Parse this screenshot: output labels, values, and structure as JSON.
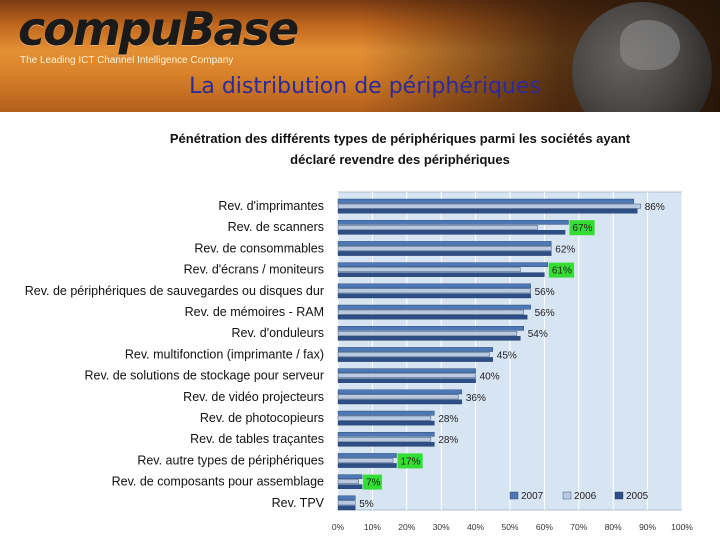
{
  "header": {
    "logo_text": "compuBase",
    "tagline": "The Leading ICT Channel Intelligence Company",
    "slide_title": "La distribution de périphériques"
  },
  "chart_title_line1": "Pénétration des différents types de périphériques parmi les sociétés ayant",
  "chart_title_line2": "déclaré revendre des périphériques",
  "colors": {
    "series_2007": "#4d78b5",
    "series_2006": "#b8c9e0",
    "series_2005": "#2e4f85",
    "plot_bg": "#d7e4f2",
    "label_highlight": "#33dd33"
  },
  "chart_data": {
    "type": "bar",
    "orientation": "horizontal",
    "title": "Pénétration des différents types de périphériques parmi les sociétés ayant déclaré revendre des périphériques",
    "categories": [
      "Rev. d'imprimantes",
      "Rev. de scanners",
      "Rev. de consommables",
      "Rev. d'écrans / moniteurs",
      "Rev. de périphériques de sauvegardes ou disques dur",
      "Rev. de mémoires - RAM",
      "Rev. d'onduleurs",
      "Rev. multifonction (imprimante / fax)",
      "Rev. de solutions de stockage pour serveur",
      "Rev. de vidéo projecteurs",
      "Rev. de photocopieurs",
      "Rev. de tables traçantes",
      "Rev. autre types de périphériques",
      "Rev. de composants pour assemblage",
      "Rev. TPV"
    ],
    "series": [
      {
        "name": "2007",
        "values": [
          86,
          67,
          62,
          61,
          56,
          56,
          54,
          45,
          40,
          36,
          28,
          28,
          17,
          7,
          5
        ]
      },
      {
        "name": "2006",
        "values": [
          88,
          58,
          62,
          53,
          56,
          54,
          52,
          44,
          40,
          35,
          27,
          27,
          16,
          6,
          5
        ]
      },
      {
        "name": "2005",
        "values": [
          87,
          66,
          62,
          60,
          56,
          55,
          53,
          45,
          40,
          36,
          28,
          28,
          17,
          7,
          5
        ]
      }
    ],
    "data_labels": [
      "86%",
      "67%",
      "62%",
      "61%",
      "56%",
      "56%",
      "54%",
      "45%",
      "40%",
      "36%",
      "28%",
      "28%",
      "17%",
      "7%",
      "5%"
    ],
    "highlighted_labels": [
      "67%",
      "61%",
      "17%",
      "7%"
    ],
    "x_ticks": [
      "0%",
      "10%",
      "20%",
      "30%",
      "40%",
      "50%",
      "60%",
      "70%",
      "80%",
      "90%",
      "100%"
    ],
    "xlim": [
      0,
      100
    ],
    "grid": true,
    "legend_position": "bottom-right"
  }
}
